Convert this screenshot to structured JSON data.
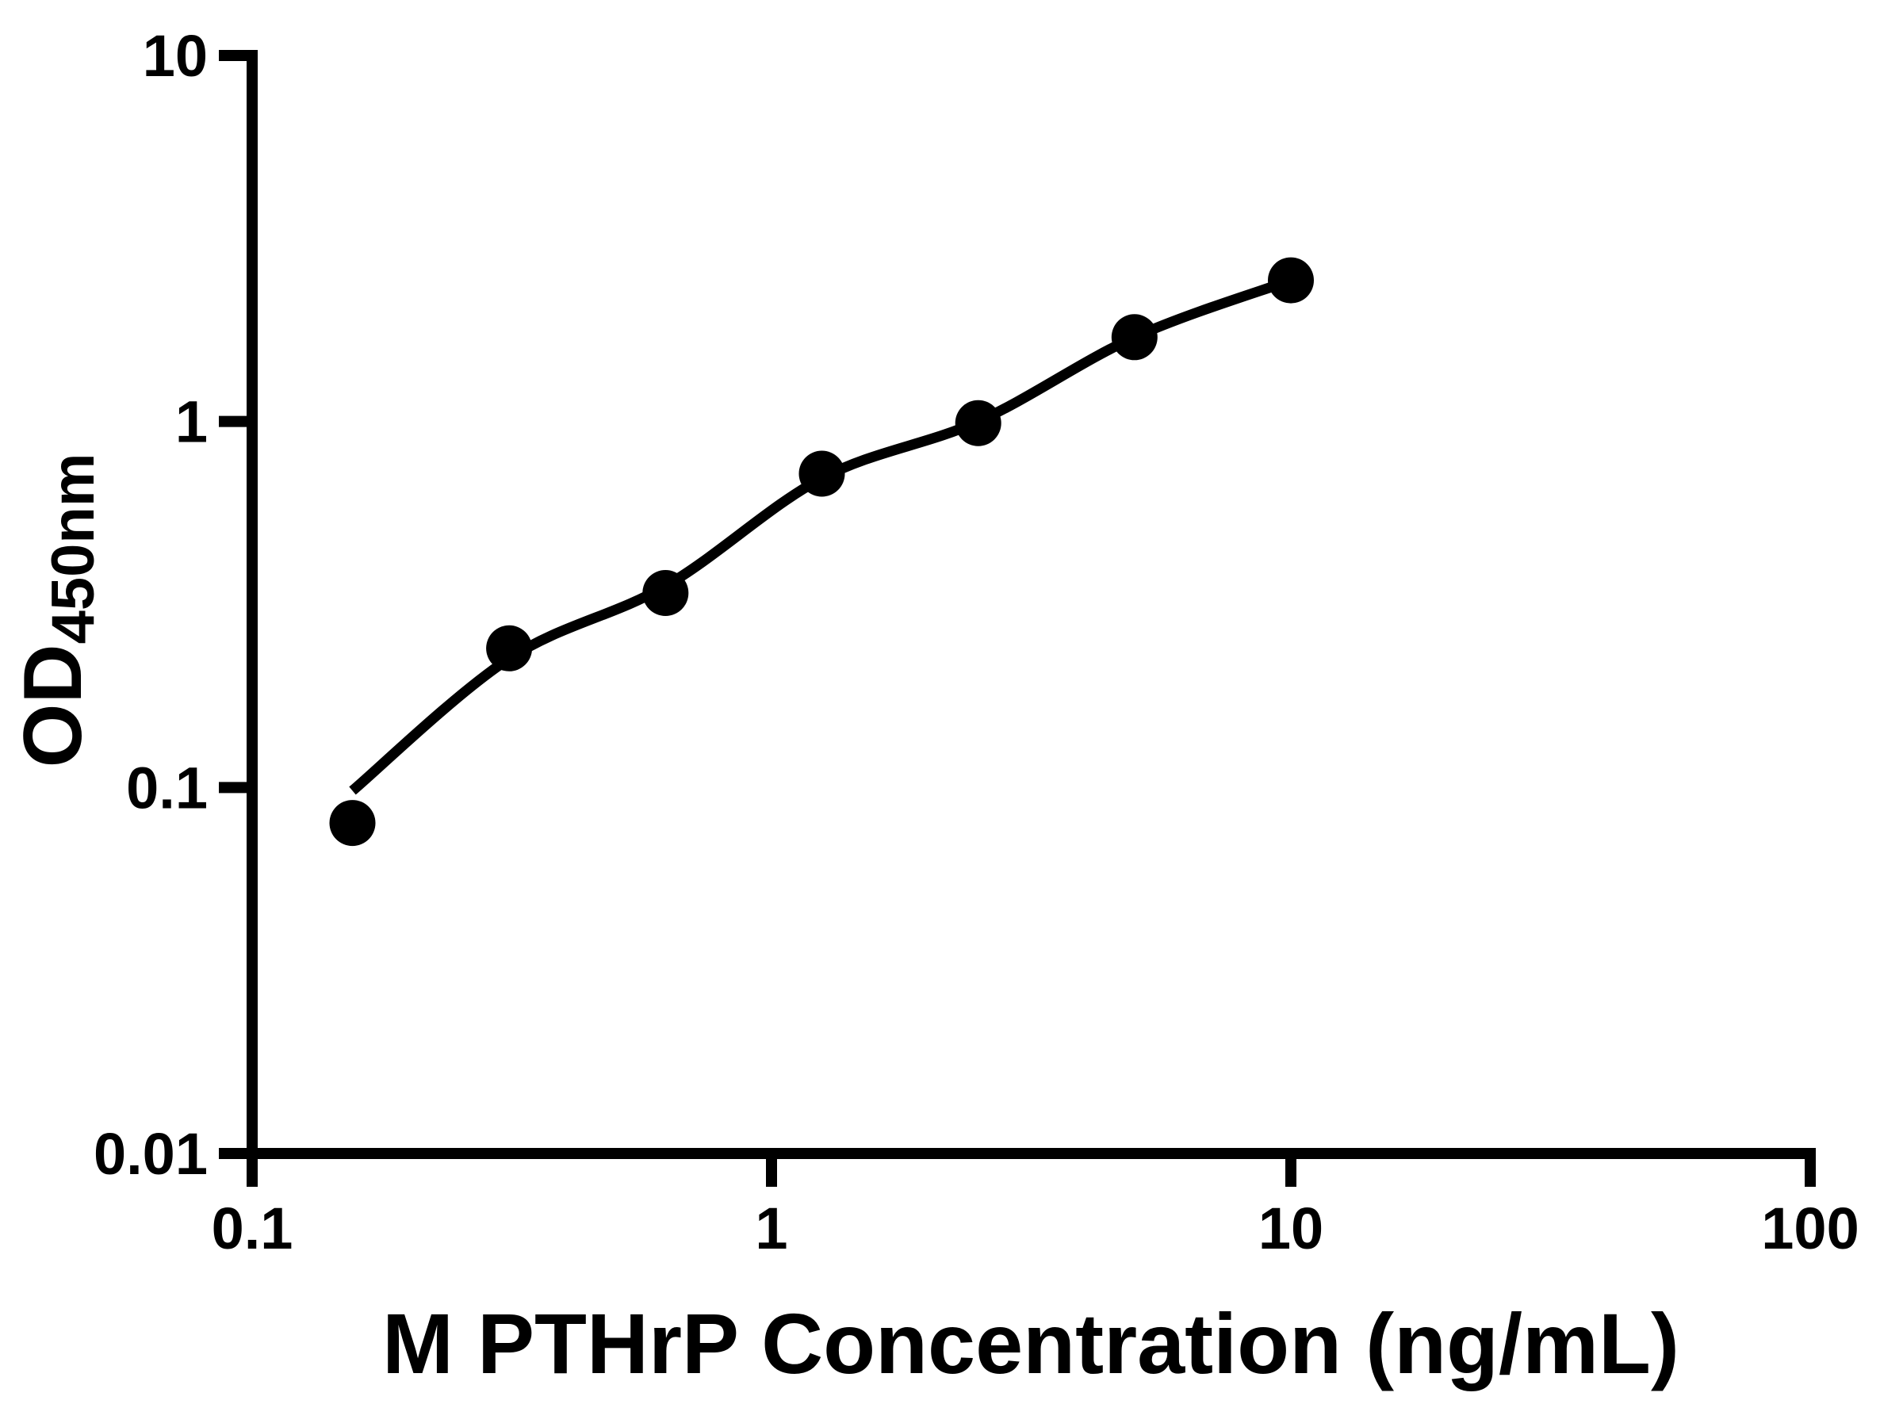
{
  "figure": {
    "background_color": "#ffffff",
    "ink_color": "#000000"
  },
  "chart_data": {
    "type": "scatter",
    "title": "",
    "xlabel": "M PTHrP Concentration (ng/mL)",
    "ylabel": "OD450nm",
    "ylabel_main": "OD",
    "ylabel_sub": "450nm",
    "x_scale": "log",
    "y_scale": "log",
    "xlim": [
      0.1,
      100
    ],
    "ylim": [
      0.01,
      10
    ],
    "x_ticks": [
      {
        "value": 0.1,
        "label": "0.1"
      },
      {
        "value": 1,
        "label": "1"
      },
      {
        "value": 10,
        "label": "10"
      },
      {
        "value": 100,
        "label": "100"
      }
    ],
    "y_ticks": [
      {
        "value": 0.01,
        "label": "0.01"
      },
      {
        "value": 0.1,
        "label": "0.1"
      },
      {
        "value": 1,
        "label": "1"
      },
      {
        "value": 10,
        "label": "10"
      }
    ],
    "grid": false,
    "legend": null,
    "series": [
      {
        "name": "standard-points",
        "type": "scatter",
        "marker": "filled-circle",
        "color": "#000000",
        "x": [
          0.156,
          0.3125,
          0.625,
          1.25,
          2.5,
          5,
          10
        ],
        "y": [
          0.08,
          0.24,
          0.34,
          0.72,
          0.99,
          1.7,
          2.43
        ]
      },
      {
        "name": "fit-curve",
        "type": "line",
        "color": "#000000",
        "x": [
          0.156,
          0.3125,
          0.625,
          1.25,
          2.5,
          5,
          10
        ],
        "y": [
          0.098,
          0.225,
          0.355,
          0.7,
          1.0,
          1.7,
          2.43
        ]
      }
    ]
  }
}
